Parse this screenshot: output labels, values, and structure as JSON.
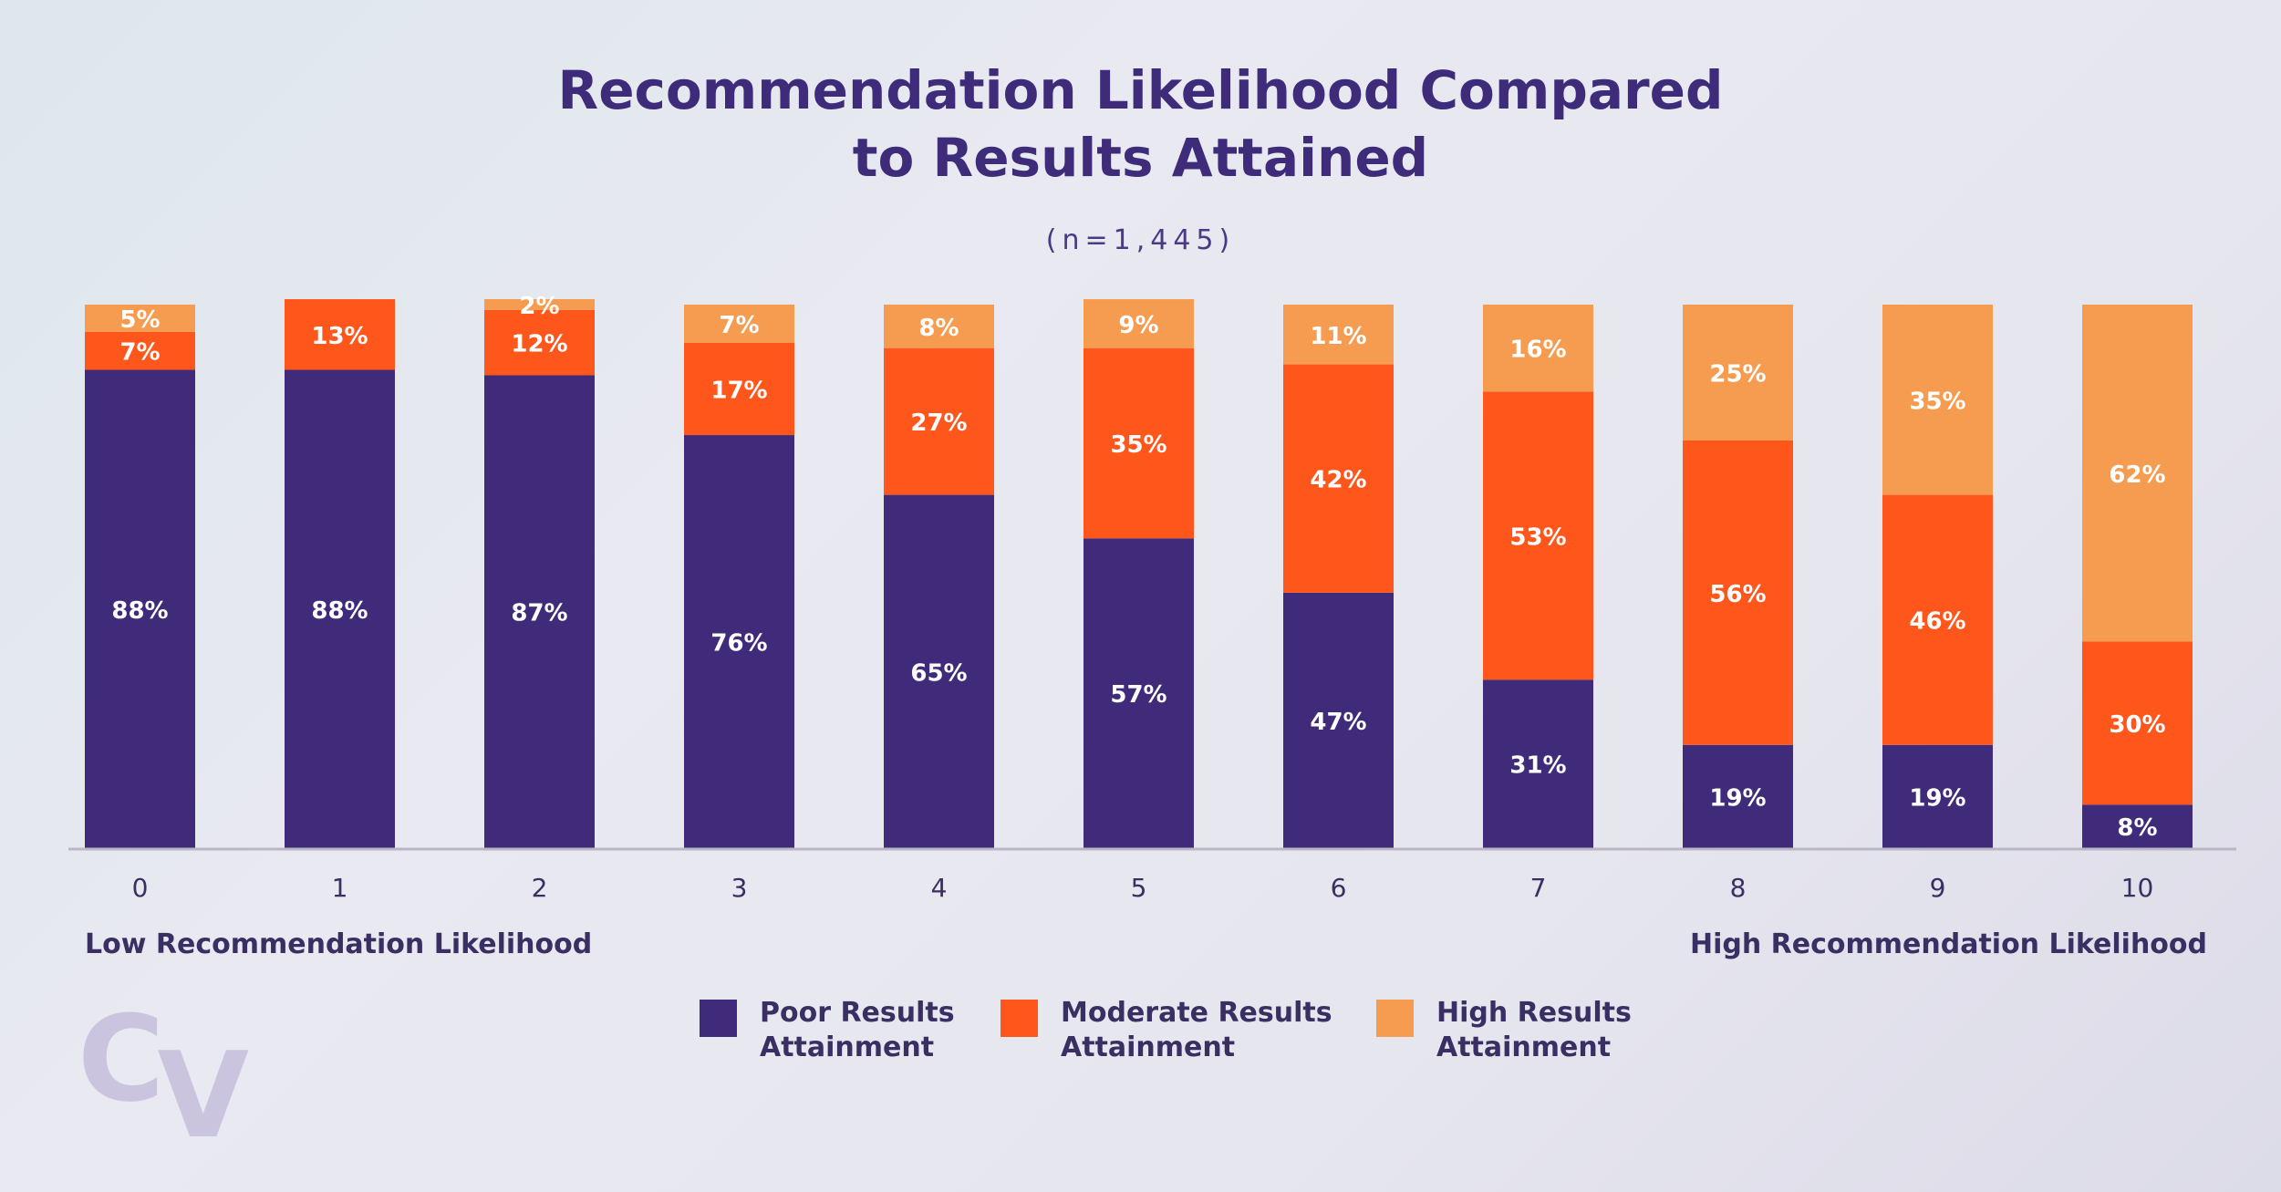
{
  "chart_data": {
    "type": "bar",
    "stacked": true,
    "title": "Recommendation Likelihood Compared to Results Attained",
    "title_lines": [
      "Recommendation Likelihood Compared",
      "to Results Attained"
    ],
    "subtitle": "(n=1,445)",
    "categories": [
      "0",
      "1",
      "2",
      "3",
      "4",
      "5",
      "6",
      "7",
      "8",
      "9",
      "10"
    ],
    "x_low_label": "Low Recommendation Likelihood",
    "x_high_label": "High Recommendation Likelihood",
    "ylim": [
      0,
      100
    ],
    "grid": false,
    "legend_position": "bottom",
    "series": [
      {
        "name": "Poor Results Attainment",
        "legend_lines": [
          "Poor Results",
          "Attainment"
        ],
        "color": "#3f2b7a",
        "values": [
          88,
          88,
          87,
          76,
          65,
          57,
          47,
          31,
          19,
          19,
          8
        ]
      },
      {
        "name": "Moderate Results Attainment",
        "legend_lines": [
          "Moderate Results",
          "Attainment"
        ],
        "color": "#ff561c",
        "values": [
          7,
          13,
          12,
          17,
          27,
          35,
          42,
          53,
          56,
          46,
          30
        ]
      },
      {
        "name": "High Results Attainment",
        "legend_lines": [
          "High Results",
          "Attainment"
        ],
        "color": "#f69c50",
        "values": [
          5,
          0,
          2,
          7,
          8,
          9,
          11,
          16,
          25,
          35,
          62
        ]
      }
    ]
  },
  "logo": "Cv"
}
